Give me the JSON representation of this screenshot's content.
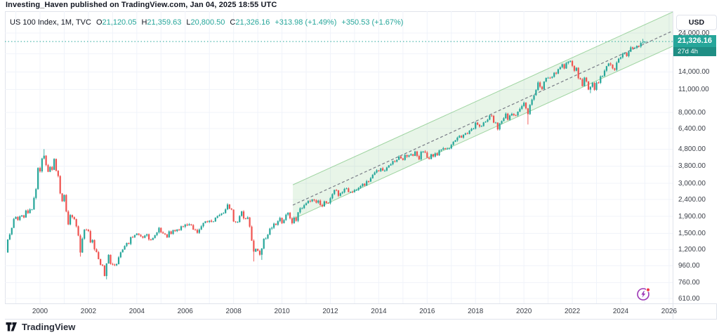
{
  "header": {
    "published_line": "Investing_Haven published on TradingView.com, Jan 04, 2025 18:55 UTC"
  },
  "legend": {
    "title": "US 100 Index, 1M, TVC",
    "ohlc": [
      {
        "k": "O",
        "v": "21,120.05"
      },
      {
        "k": "H",
        "v": "21,359.63"
      },
      {
        "k": "L",
        "v": "20,800.50"
      },
      {
        "k": "C",
        "v": "21,326.16"
      }
    ],
    "change_abs": "+313.98 (+1.49%)",
    "change_ext": "+350.53 (+1.67%)"
  },
  "axis": {
    "currency_button": "USD"
  },
  "price_label": {
    "price": "21,326.16",
    "countdown": "27d 4h"
  },
  "footer": {
    "brand": "TradingView"
  },
  "colors": {
    "up": "#26a69a",
    "down": "#ef5350",
    "grid": "#f0f3fa",
    "border": "#e0e3eb",
    "trend_line": "#787b86",
    "channel_fill": "rgba(76,175,80,0.13)",
    "channel_edge": "rgba(76,175,80,0.5)",
    "flash_purple": "#9c36b5",
    "alert_red": "#f23645"
  },
  "chart_data": {
    "type": "candlestick",
    "title": "US 100 Index",
    "symbol": "US 100 Index",
    "exchange": "TVC",
    "interval": "1M",
    "currency": "USD",
    "scale": "log",
    "start_month": "1998-09",
    "prev_close_before_start": 1153,
    "monthly_closes": [
      1380,
      1480,
      1620,
      1836,
      1885,
      1805,
      1900,
      1925,
      1870,
      2060,
      1985,
      2090,
      2090,
      2450,
      2770,
      3708,
      3540,
      4230,
      4398,
      3861,
      3520,
      3764,
      3615,
      4206,
      3570,
      3320,
      2610,
      2341,
      2555,
      2032,
      1698,
      1934,
      1879,
      1830,
      1655,
      1456,
      1152,
      1395,
      1579,
      1577,
      1550,
      1325,
      1370,
      1205,
      1159,
      1051,
      972,
      963,
      832,
      990,
      1116,
      984,
      977,
      967,
      982,
      1078,
      1155,
      1201,
      1262,
      1315,
      1297,
      1427,
      1425,
      1468,
      1498,
      1470,
      1440,
      1413,
      1457,
      1483,
      1380,
      1372,
      1409,
      1466,
      1521,
      1621,
      1524,
      1500,
      1482,
      1421,
      1543,
      1491,
      1572,
      1548,
      1585,
      1570,
      1655,
      1645,
      1696,
      1676,
      1703,
      1685,
      1580,
      1575,
      1513,
      1584,
      1656,
      1733,
      1773,
      1757,
      1790,
      1764,
      1771,
      1865,
      1905,
      1935,
      1973,
      1988,
      2092,
      2239,
      2110,
      2085,
      1771,
      1757,
      1757,
      1911,
      2033,
      1848,
      1837,
      1871,
      1648,
      1358,
      1167,
      1212,
      1180,
      1117,
      1217,
      1394,
      1398,
      1477,
      1605,
      1623,
      1717,
      1689,
      1778,
      1860,
      1729,
      1805,
      1944,
      1999,
      1849,
      1728,
      1866,
      1786,
      2009,
      2124,
      2127,
      2218,
      2277,
      2351,
      2339,
      2404,
      2372,
      2296,
      2363,
      2223,
      2180,
      2338,
      2287,
      2278,
      2440,
      2584,
      2738,
      2722,
      2524,
      2615,
      2652,
      2779,
      2799,
      2660,
      2670,
      2660,
      2732,
      2738,
      2818,
      2888,
      2982,
      2910,
      3090,
      3073,
      3218,
      3377,
      3487,
      3592,
      3551,
      3696,
      3582,
      3582,
      3737,
      3844,
      3908,
      4082,
      4049,
      4158,
      4347,
      4236,
      4147,
      4441,
      4341,
      4415,
      4488,
      4387,
      4660,
      4380,
      4182,
      4648,
      4664,
      4593,
      4279,
      4201,
      4484,
      4341,
      4538,
      4420,
      4731,
      4781,
      4876,
      4816,
      4850,
      4863,
      5109,
      5326,
      5436,
      5647,
      5789,
      5647,
      5880,
      5988,
      5949,
      6213,
      6364,
      6396,
      6949,
      6757,
      6581,
      6624,
      6970,
      7041,
      7237,
      7671,
      7627,
      6949,
      6949,
      6330,
      6869,
      7099,
      7381,
      7866,
      7227,
      7671,
      7848,
      7691,
      7680,
      8083,
      8404,
      8734,
      9151,
      8461,
      7813,
      8890,
      9556,
      10157,
      10906,
      12110,
      11418,
      11053,
      12268,
      12888,
      12925,
      12909,
      13092,
      13860,
      13687,
      14555,
      14960,
      15583,
      14690,
      15850,
      16136,
      16320,
      15239,
      14238,
      14839,
      12855,
      12642,
      11504,
      12948,
      12272,
      10972,
      11406,
      12030,
      10940,
      12102,
      12042,
      13181,
      13245,
      14254,
      15179,
      15751,
      15501,
      14715,
      14410,
      15947,
      16826,
      17137,
      18043,
      18255,
      17441,
      18536,
      19683,
      19362,
      19575,
      20061,
      19890,
      20930,
      21012
    ],
    "live_candle": {
      "date": "2025-01",
      "open": 21120.05,
      "high": 21359.63,
      "low": 20800.5,
      "close": 21326.16
    },
    "hl_overrides": {
      "2000-03": {
        "high": 4816
      },
      "2001-09": {
        "low": 1089
      },
      "2002-10": {
        "low": 795
      },
      "2008-11": {
        "low": 1018
      },
      "2009-03": {
        "low": 1040
      },
      "2020-03": {
        "low": 6772
      },
      "2022-10": {
        "low": 10440
      },
      "2024-12": {
        "high": 22133
      }
    },
    "last_price": 21326.16,
    "countdown": "27d 4h",
    "y_axis_ticks": [
      24000,
      18000,
      14000,
      11000,
      8000,
      6400,
      4800,
      3800,
      3000,
      2400,
      1900,
      1500,
      1200,
      960,
      760,
      610
    ],
    "x_axis_ticks": [
      2000,
      2002,
      2004,
      2006,
      2008,
      2010,
      2012,
      2014,
      2016,
      2018,
      2020,
      2022,
      2024,
      2026
    ],
    "x_range_years": [
      1998.6,
      2026.4
    ],
    "trend_channel": {
      "start_year": 2010.45,
      "end_year": 2026.35,
      "mid_start_price": 2220,
      "mid_end_price": 24700,
      "top_start_price": 2940,
      "top_end_price": 32100,
      "bottom_start_price": 1830,
      "bottom_end_price": 20000,
      "mid_style": "dashed"
    }
  }
}
